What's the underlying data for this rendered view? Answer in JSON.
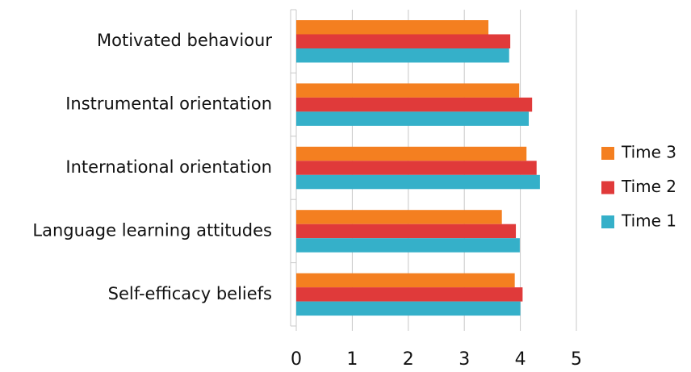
{
  "chart_data": {
    "type": "bar",
    "orientation": "horizontal",
    "categories": [
      "Motivated behaviour",
      "Instrumental orientation",
      "International orientation",
      "Language learning attitudes",
      "Self-efficacy beliefs"
    ],
    "series": [
      {
        "name": "Time 3",
        "color": "#f47f20",
        "values": [
          3.43,
          3.98,
          4.11,
          3.67,
          3.9
        ]
      },
      {
        "name": "Time 2",
        "color": "#e03a3a",
        "values": [
          3.82,
          4.21,
          4.29,
          3.92,
          4.04
        ]
      },
      {
        "name": "Time 1",
        "color": "#35b0c9",
        "values": [
          3.8,
          4.15,
          4.35,
          3.99,
          4.0
        ]
      }
    ],
    "xlim": [
      0,
      5
    ],
    "xticks": [
      0,
      1,
      2,
      3,
      4,
      5
    ],
    "grid": true,
    "legend": "right"
  }
}
